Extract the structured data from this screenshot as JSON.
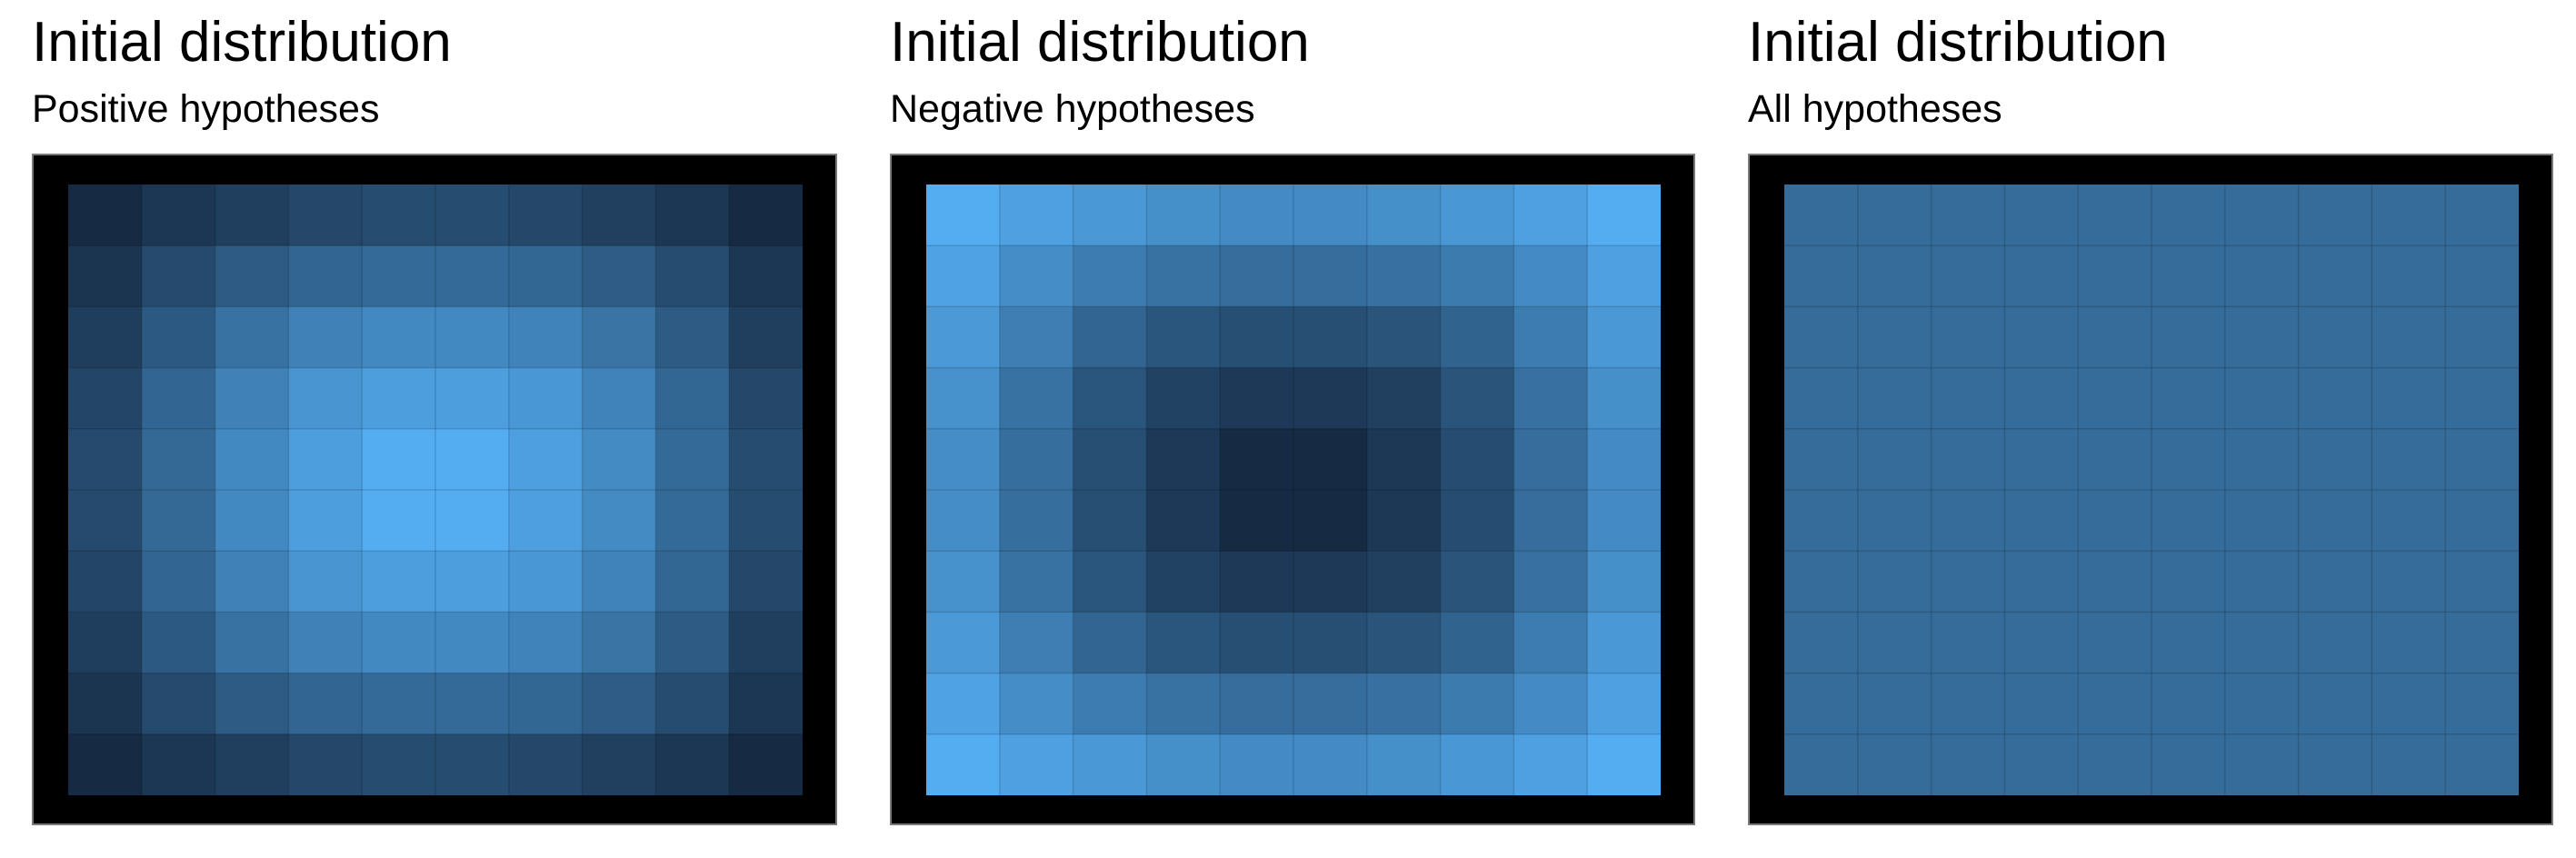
{
  "chart_data": [
    {
      "type": "heatmap",
      "title": "Initial distribution",
      "subtitle": "Positive hypotheses",
      "xlabel": "",
      "ylabel": "",
      "grid": true,
      "legend": "none",
      "color_low": "#14263d",
      "color_high": "#56b1f7",
      "values": [
        [
          0.03,
          0.12,
          0.18,
          0.24,
          0.27,
          0.27,
          0.24,
          0.19,
          0.12,
          0.03
        ],
        [
          0.11,
          0.26,
          0.38,
          0.45,
          0.49,
          0.49,
          0.46,
          0.39,
          0.27,
          0.12
        ],
        [
          0.17,
          0.37,
          0.55,
          0.66,
          0.71,
          0.71,
          0.67,
          0.56,
          0.38,
          0.18
        ],
        [
          0.23,
          0.45,
          0.66,
          0.8,
          0.86,
          0.86,
          0.81,
          0.67,
          0.46,
          0.24
        ],
        [
          0.26,
          0.48,
          0.71,
          0.86,
          0.97,
          0.97,
          0.87,
          0.72,
          0.49,
          0.27
        ],
        [
          0.26,
          0.48,
          0.71,
          0.86,
          0.97,
          0.97,
          0.87,
          0.72,
          0.49,
          0.27
        ],
        [
          0.23,
          0.45,
          0.66,
          0.8,
          0.86,
          0.86,
          0.81,
          0.67,
          0.46,
          0.24
        ],
        [
          0.17,
          0.37,
          0.55,
          0.66,
          0.71,
          0.71,
          0.67,
          0.56,
          0.38,
          0.18
        ],
        [
          0.11,
          0.26,
          0.38,
          0.45,
          0.49,
          0.49,
          0.46,
          0.39,
          0.27,
          0.12
        ],
        [
          0.03,
          0.12,
          0.18,
          0.24,
          0.27,
          0.27,
          0.24,
          0.19,
          0.12,
          0.03
        ]
      ]
    },
    {
      "type": "heatmap",
      "title": "Initial distribution",
      "subtitle": "Negative hypotheses",
      "xlabel": "",
      "ylabel": "",
      "grid": true,
      "legend": "none",
      "color_low": "#14263d",
      "color_high": "#56b1f7",
      "values": [
        [
          0.97,
          0.88,
          0.82,
          0.76,
          0.73,
          0.73,
          0.76,
          0.81,
          0.88,
          0.97
        ],
        [
          0.89,
          0.74,
          0.62,
          0.55,
          0.51,
          0.51,
          0.54,
          0.61,
          0.73,
          0.88
        ],
        [
          0.83,
          0.63,
          0.45,
          0.34,
          0.29,
          0.29,
          0.33,
          0.44,
          0.62,
          0.82
        ],
        [
          0.77,
          0.55,
          0.34,
          0.2,
          0.14,
          0.14,
          0.19,
          0.33,
          0.54,
          0.76
        ],
        [
          0.74,
          0.52,
          0.29,
          0.14,
          0.03,
          0.03,
          0.13,
          0.28,
          0.51,
          0.73
        ],
        [
          0.74,
          0.52,
          0.29,
          0.14,
          0.03,
          0.03,
          0.13,
          0.28,
          0.51,
          0.73
        ],
        [
          0.77,
          0.55,
          0.34,
          0.2,
          0.14,
          0.14,
          0.19,
          0.33,
          0.54,
          0.76
        ],
        [
          0.83,
          0.63,
          0.45,
          0.34,
          0.29,
          0.29,
          0.33,
          0.44,
          0.62,
          0.82
        ],
        [
          0.89,
          0.74,
          0.62,
          0.55,
          0.51,
          0.51,
          0.54,
          0.61,
          0.73,
          0.88
        ],
        [
          0.97,
          0.88,
          0.82,
          0.76,
          0.73,
          0.73,
          0.76,
          0.81,
          0.88,
          0.97
        ]
      ]
    },
    {
      "type": "heatmap",
      "title": "Initial distribution",
      "subtitle": "All hypotheses",
      "xlabel": "",
      "ylabel": "",
      "grid": true,
      "legend": "none",
      "color_low": "#14263d",
      "color_high": "#56b1f7",
      "values": [
        [
          0.5,
          0.5,
          0.5,
          0.5,
          0.5,
          0.5,
          0.5,
          0.5,
          0.5,
          0.5
        ],
        [
          0.5,
          0.5,
          0.5,
          0.5,
          0.5,
          0.5,
          0.5,
          0.5,
          0.5,
          0.5
        ],
        [
          0.5,
          0.5,
          0.5,
          0.5,
          0.5,
          0.5,
          0.5,
          0.5,
          0.5,
          0.5
        ],
        [
          0.5,
          0.5,
          0.5,
          0.5,
          0.5,
          0.5,
          0.5,
          0.5,
          0.5,
          0.5
        ],
        [
          0.5,
          0.5,
          0.5,
          0.5,
          0.5,
          0.5,
          0.5,
          0.5,
          0.5,
          0.5
        ],
        [
          0.5,
          0.5,
          0.5,
          0.5,
          0.5,
          0.5,
          0.5,
          0.5,
          0.5,
          0.5
        ],
        [
          0.5,
          0.5,
          0.5,
          0.5,
          0.5,
          0.5,
          0.5,
          0.5,
          0.5,
          0.5
        ],
        [
          0.5,
          0.5,
          0.5,
          0.5,
          0.5,
          0.5,
          0.5,
          0.5,
          0.5,
          0.5
        ],
        [
          0.5,
          0.5,
          0.5,
          0.5,
          0.5,
          0.5,
          0.5,
          0.5,
          0.5,
          0.5
        ],
        [
          0.5,
          0.5,
          0.5,
          0.5,
          0.5,
          0.5,
          0.5,
          0.5,
          0.5,
          0.5
        ]
      ]
    }
  ]
}
